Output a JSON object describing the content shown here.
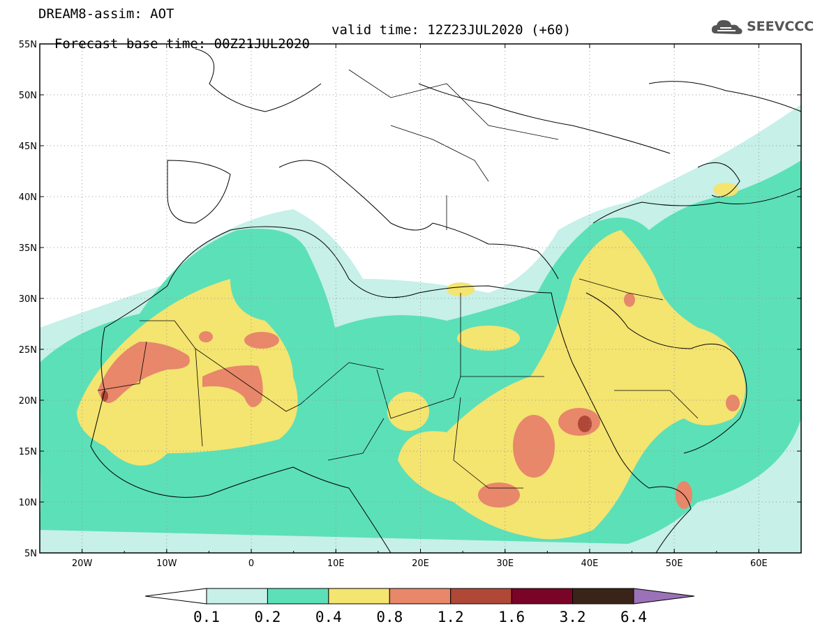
{
  "header": {
    "line1": "DREAM8-assim: AOT",
    "line2_base": "Forecast base time: 00Z21JUL2020",
    "line2_valid": "valid time: 12Z23JUL2020 (+60)"
  },
  "logo": {
    "text": "SEEVCCC",
    "icon": "cloud-icon"
  },
  "axes": {
    "lat_labels": [
      "55N",
      "50N",
      "45N",
      "40N",
      "35N",
      "30N",
      "25N",
      "20N",
      "15N",
      "10N",
      "5N"
    ],
    "lon_labels": [
      "20W",
      "10W",
      "0",
      "10E",
      "20E",
      "30E",
      "40E",
      "50E",
      "60E"
    ],
    "lat_range": [
      5,
      55
    ],
    "lon_range": [
      -25,
      65
    ]
  },
  "colorbar": {
    "ticks": [
      "0.1",
      "0.2",
      "0.4",
      "0.8",
      "1.2",
      "1.6",
      "3.2",
      "6.4"
    ],
    "colors": [
      "#c6f0e8",
      "#5ce0b8",
      "#f4e470",
      "#e8876a",
      "#b04838",
      "#7a0428",
      "#3a2418",
      "#9b72b8"
    ]
  },
  "colors": {
    "c1": "#c6f0e8",
    "c2": "#5ce0b8",
    "c3": "#f4e470",
    "c4": "#e8876a",
    "c5": "#b04838"
  }
}
